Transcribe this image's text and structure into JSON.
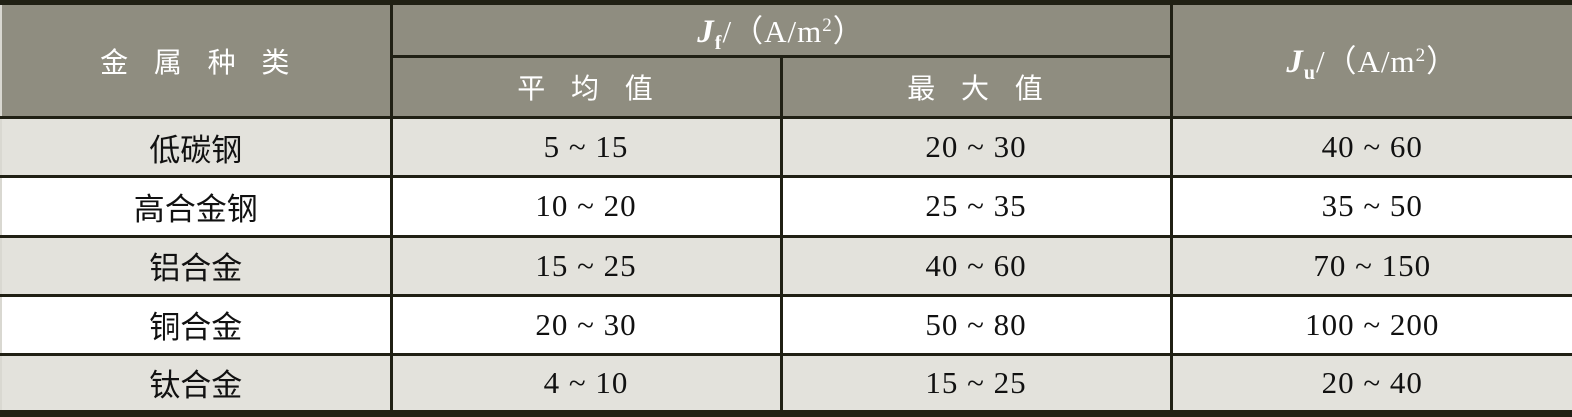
{
  "colors": {
    "header_bg": "#8f8d80",
    "row_alt_bg": "#e3e2dc",
    "row_bg": "#ffffff",
    "border": "#202014",
    "header_text": "#ffffff",
    "body_text": "#111111",
    "outer_edge": "#d9d8d1"
  },
  "table": {
    "header": {
      "metal_type": "金 属 种 类",
      "jf": {
        "symbol": "J",
        "sub": "f",
        "unit_pre": "/（A/m",
        "sup": "2",
        "unit_post": "）"
      },
      "ju": {
        "symbol": "J",
        "sub": "u",
        "unit_pre": "/（A/m",
        "sup": "2",
        "unit_post": "）"
      },
      "avg_label": "平 均 值",
      "max_label": "最 大 值"
    },
    "rows": [
      {
        "metal": "低碳钢",
        "avg": "5 ~ 15",
        "max": "20 ~ 30",
        "ju": "40 ~ 60"
      },
      {
        "metal": "高合金钢",
        "avg": "10 ~ 20",
        "max": "25 ~ 35",
        "ju": "35 ~ 50"
      },
      {
        "metal": "铝合金",
        "avg": "15 ~ 25",
        "max": "40 ~ 60",
        "ju": "70 ~ 150"
      },
      {
        "metal": "铜合金",
        "avg": "20 ~ 30",
        "max": "50 ~ 80",
        "ju": "100 ~ 200"
      },
      {
        "metal": "钛合金",
        "avg": "4 ~ 10",
        "max": "15 ~ 25",
        "ju": "20 ~ 40"
      }
    ]
  }
}
